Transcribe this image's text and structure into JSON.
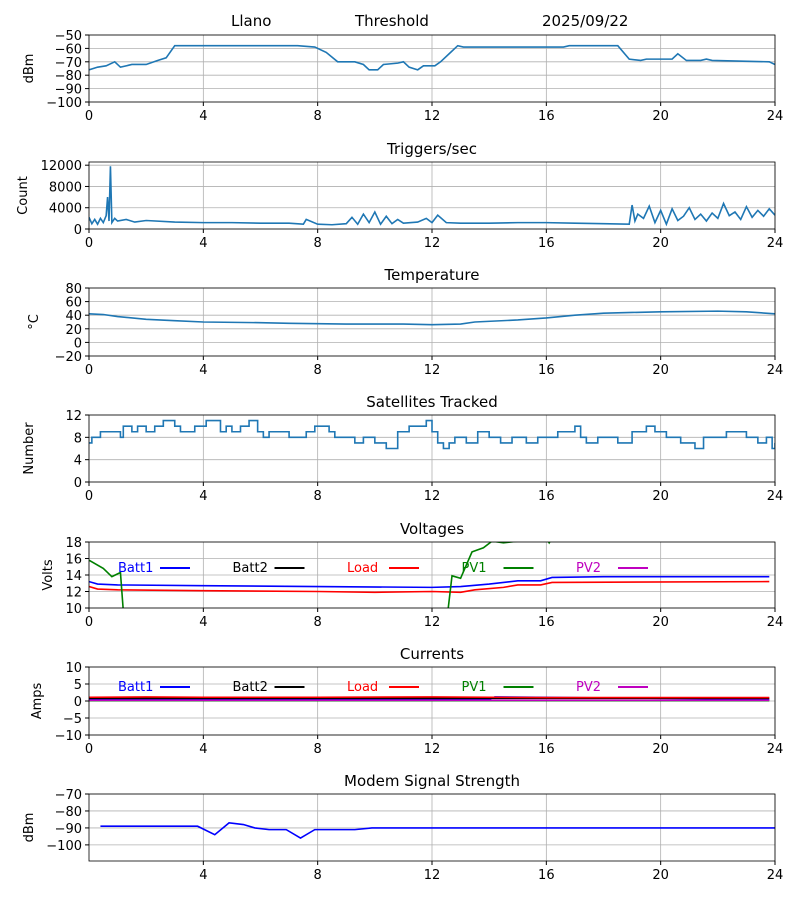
{
  "header": {
    "site": "Llano",
    "mode": "Threshold",
    "date": "2025/09/22"
  },
  "chart_data": [
    {
      "type": "line",
      "id": "signal",
      "title": "",
      "ylabel": "dBm",
      "xlim": [
        0,
        24
      ],
      "ylim": [
        -100,
        -50
      ],
      "xticks": [
        0,
        4,
        8,
        12,
        16,
        20,
        24
      ],
      "yticks": [
        -50,
        -60,
        -70,
        -80,
        -90,
        -100
      ],
      "grid": true,
      "series": [
        {
          "name": "signal",
          "color": "#1f77b4",
          "x": [
            0,
            0.3,
            0.6,
            0.9,
            1.1,
            1.5,
            2,
            2.4,
            2.7,
            3,
            7.3,
            7.9,
            8.3,
            8.7,
            9.3,
            9.6,
            9.8,
            10.1,
            10.3,
            10.8,
            11,
            11.2,
            11.5,
            11.7,
            12.1,
            12.3,
            12.6,
            12.9,
            13.1,
            16.6,
            16.8,
            18.5,
            18.9,
            19.3,
            19.5,
            20.4,
            20.6,
            20.9,
            21.4,
            21.6,
            21.8,
            23.8,
            24
          ],
          "y": [
            -76,
            -74,
            -73,
            -70,
            -74,
            -72,
            -72,
            -69,
            -67,
            -58,
            -58,
            -59,
            -63,
            -70,
            -70,
            -72,
            -76,
            -76,
            -72,
            -71,
            -70,
            -74,
            -76,
            -73,
            -73,
            -70,
            -64,
            -58,
            -59,
            -59,
            -58,
            -58,
            -68,
            -69,
            -68,
            -68,
            -64,
            -69,
            -69,
            -68,
            -69,
            -70,
            -72
          ]
        }
      ]
    },
    {
      "type": "line",
      "id": "triggers",
      "title": "Triggers/sec",
      "ylabel": "Count",
      "xlim": [
        0,
        24
      ],
      "ylim": [
        0,
        12600
      ],
      "xticks": [
        0,
        4,
        8,
        12,
        16,
        20,
        24
      ],
      "yticks": [
        0,
        4000,
        8000,
        12000
      ],
      "grid": true,
      "series": [
        {
          "name": "triggers",
          "color": "#1f77b4",
          "x": [
            0,
            0.1,
            0.2,
            0.3,
            0.4,
            0.5,
            0.6,
            0.65,
            0.7,
            0.75,
            0.8,
            0.9,
            1,
            1.3,
            1.6,
            2,
            3,
            4,
            5,
            6,
            7,
            7.5,
            7.6,
            8,
            8.5,
            9,
            9.2,
            9.4,
            9.6,
            9.8,
            10,
            10.2,
            10.4,
            10.6,
            10.8,
            11,
            11.5,
            11.8,
            12,
            12.2,
            12.5,
            13,
            14,
            15,
            16,
            17,
            18,
            18.9,
            19,
            19.1,
            19.2,
            19.4,
            19.6,
            19.8,
            20,
            20.2,
            20.4,
            20.6,
            20.8,
            21,
            21.2,
            21.4,
            21.6,
            21.8,
            22,
            22.2,
            22.4,
            22.6,
            22.8,
            23,
            23.2,
            23.4,
            23.6,
            23.8,
            24
          ],
          "y": [
            2200,
            1000,
            1800,
            900,
            2000,
            1200,
            2500,
            6000,
            1500,
            11800,
            1200,
            2000,
            1500,
            1800,
            1300,
            1600,
            1300,
            1200,
            1200,
            1100,
            1100,
            900,
            1800,
            900,
            800,
            1000,
            2200,
            900,
            2800,
            1200,
            3200,
            900,
            2400,
            1000,
            1800,
            1100,
            1300,
            2000,
            1200,
            2600,
            1200,
            1100,
            1100,
            1200,
            1200,
            1100,
            1000,
            900,
            4500,
            1500,
            2800,
            2000,
            4300,
            1200,
            3500,
            900,
            3800,
            1600,
            2400,
            4000,
            1800,
            2800,
            1500,
            3000,
            2000,
            4800,
            2500,
            3200,
            1800,
            4200,
            2200,
            3500,
            2400,
            3800,
            2600
          ]
        }
      ]
    },
    {
      "type": "line",
      "id": "temperature",
      "title": "Temperature",
      "ylabel": "°C",
      "xlim": [
        0,
        24
      ],
      "ylim": [
        -20,
        80
      ],
      "xticks": [
        0,
        4,
        8,
        12,
        16,
        20,
        24
      ],
      "yticks": [
        80,
        60,
        40,
        20,
        0,
        -20
      ],
      "grid": true,
      "series": [
        {
          "name": "temperature",
          "color": "#1f77b4",
          "x": [
            0,
            0.5,
            1,
            2,
            3,
            4,
            6,
            7,
            9,
            11,
            12,
            13,
            13.5,
            15,
            16,
            17,
            18,
            19,
            20,
            22,
            23,
            24
          ],
          "y": [
            42,
            41,
            38,
            34,
            32,
            30,
            29,
            28,
            27,
            27,
            26,
            27,
            30,
            33,
            36,
            40,
            43,
            44,
            45,
            46,
            45,
            42
          ]
        }
      ]
    },
    {
      "type": "line",
      "id": "satellites",
      "title": "Satellites Tracked",
      "ylabel": "Number",
      "xlim": [
        0,
        24
      ],
      "ylim": [
        0,
        12
      ],
      "step": true,
      "xticks": [
        0,
        4,
        8,
        12,
        16,
        20,
        24
      ],
      "yticks": [
        0,
        4,
        8,
        12
      ],
      "grid": true,
      "series": [
        {
          "name": "satellites",
          "color": "#1f77b4",
          "x": [
            0,
            0.1,
            0.4,
            1.1,
            1.2,
            1.5,
            1.7,
            2,
            2.3,
            2.6,
            3,
            3.2,
            3.7,
            4.1,
            4.6,
            4.8,
            5,
            5.3,
            5.6,
            5.9,
            6.1,
            6.3,
            7,
            7.6,
            7.9,
            8.4,
            8.6,
            9.3,
            9.6,
            10,
            10.4,
            10.8,
            11.2,
            11.8,
            12,
            12.2,
            12.4,
            12.6,
            12.8,
            13.2,
            13.6,
            14,
            14.4,
            14.8,
            15.3,
            15.7,
            16.4,
            17,
            17.2,
            17.4,
            17.8,
            18.5,
            19,
            19.5,
            19.8,
            20.2,
            20.7,
            21.2,
            21.5,
            22.3,
            23,
            23.4,
            23.7,
            23.9,
            24
          ],
          "y": [
            7,
            8,
            9,
            8,
            10,
            9,
            10,
            9,
            10,
            11,
            10,
            9,
            10,
            11,
            9,
            10,
            9,
            10,
            11,
            9,
            8,
            9,
            8,
            9,
            10,
            9,
            8,
            7,
            8,
            7,
            6,
            9,
            10,
            11,
            9,
            7,
            6,
            7,
            8,
            7,
            9,
            8,
            7,
            8,
            7,
            8,
            9,
            10,
            8,
            7,
            8,
            7,
            9,
            10,
            9,
            8,
            7,
            6,
            8,
            9,
            8,
            7,
            8,
            6,
            7
          ]
        }
      ]
    },
    {
      "type": "line",
      "id": "voltages",
      "title": "Voltages",
      "ylabel": "Volts",
      "xlim": [
        0,
        24
      ],
      "ylim": [
        10,
        18
      ],
      "xticks": [
        0,
        4,
        8,
        12,
        16,
        20,
        24
      ],
      "yticks": [
        10,
        12,
        14,
        16,
        18
      ],
      "grid": true,
      "series": [
        {
          "name": "Batt1",
          "color": "#0000ff",
          "x": [
            0,
            0.3,
            1,
            4,
            8,
            12,
            13,
            14,
            15,
            15.8,
            16.2,
            18,
            23.8
          ],
          "y": [
            13.2,
            12.9,
            12.8,
            12.7,
            12.6,
            12.5,
            12.6,
            12.9,
            13.3,
            13.3,
            13.7,
            13.8,
            13.8
          ]
        },
        {
          "name": "Batt2",
          "color": "#000000",
          "x": [],
          "y": []
        },
        {
          "name": "Load",
          "color": "#ff0000",
          "x": [
            0,
            0.3,
            1,
            4,
            8,
            10,
            12,
            13,
            13.5,
            14.5,
            15,
            15.8,
            16.2,
            23.8
          ],
          "y": [
            12.6,
            12.3,
            12.2,
            12.1,
            12.0,
            11.9,
            12.0,
            11.9,
            12.2,
            12.5,
            12.8,
            12.8,
            13.1,
            13.2
          ]
        },
        {
          "name": "PV1",
          "color": "#008000",
          "x": [
            0,
            0.5,
            0.8,
            1.1,
            1.3,
            12.4,
            12.7,
            13,
            13.4,
            13.8,
            14.1,
            14.5,
            15,
            15.5,
            15.9,
            16.1,
            16.3,
            17
          ],
          "y": [
            15.8,
            14.8,
            13.8,
            14.3,
            5,
            5,
            13.9,
            13.6,
            16.8,
            17.3,
            18.1,
            17.9,
            18.1,
            19,
            19,
            17.9,
            19,
            20
          ]
        },
        {
          "name": "PV2",
          "color": "#bf00bf",
          "x": [],
          "y": []
        }
      ]
    },
    {
      "type": "line",
      "id": "currents",
      "title": "Currents",
      "ylabel": "Amps",
      "xlim": [
        0,
        24
      ],
      "ylim": [
        -10,
        10
      ],
      "xticks": [
        0,
        4,
        8,
        12,
        16,
        20,
        24
      ],
      "yticks": [
        10,
        5,
        0,
        -5,
        -10
      ],
      "grid": true,
      "series": [
        {
          "name": "Batt1",
          "color": "#0000ff",
          "x": [
            0,
            14,
            14.2,
            23.8
          ],
          "y": [
            0.5,
            0.5,
            1.2,
            0.5
          ]
        },
        {
          "name": "Batt2",
          "color": "#000000",
          "x": [
            0,
            23.8
          ],
          "y": [
            0.8,
            0.8
          ]
        },
        {
          "name": "Load",
          "color": "#ff0000",
          "x": [
            0,
            2,
            4,
            8,
            12,
            16,
            20,
            23.8
          ],
          "y": [
            1.1,
            1.2,
            1.1,
            1.1,
            1.2,
            1.0,
            1.0,
            1.0
          ]
        },
        {
          "name": "PV1",
          "color": "#008000",
          "x": [
            0,
            23.8
          ],
          "y": [
            0.1,
            0.1
          ]
        },
        {
          "name": "PV2",
          "color": "#bf00bf",
          "x": [
            0,
            23.8
          ],
          "y": [
            0.2,
            0.2
          ]
        }
      ]
    },
    {
      "type": "line",
      "id": "modem",
      "title": "Modem Signal Strength",
      "ylabel": "dBm",
      "xlim": [
        0,
        24
      ],
      "ylim": [
        -109.5,
        -70
      ],
      "xticks": [
        4,
        8,
        12,
        16,
        20,
        24
      ],
      "yticks": [
        -70,
        -80,
        -90,
        -100
      ],
      "grid": true,
      "series": [
        {
          "name": "modem",
          "color": "#0000ff",
          "x": [
            0.4,
            3.8,
            4.4,
            4.9,
            5.4,
            5.8,
            6.3,
            6.9,
            7.4,
            7.9,
            9.3,
            9.9,
            24
          ],
          "y": [
            -89,
            -89,
            -94,
            -87,
            -88,
            -90,
            -91,
            -91,
            -96,
            -91,
            -91,
            -90,
            -90
          ]
        }
      ]
    }
  ],
  "legend": [
    {
      "label": "Batt1",
      "color": "#0000ff"
    },
    {
      "label": "Batt2",
      "color": "#000000"
    },
    {
      "label": "Load",
      "color": "#ff0000"
    },
    {
      "label": "PV1",
      "color": "#008000"
    },
    {
      "label": "PV2",
      "color": "#bf00bf"
    }
  ]
}
